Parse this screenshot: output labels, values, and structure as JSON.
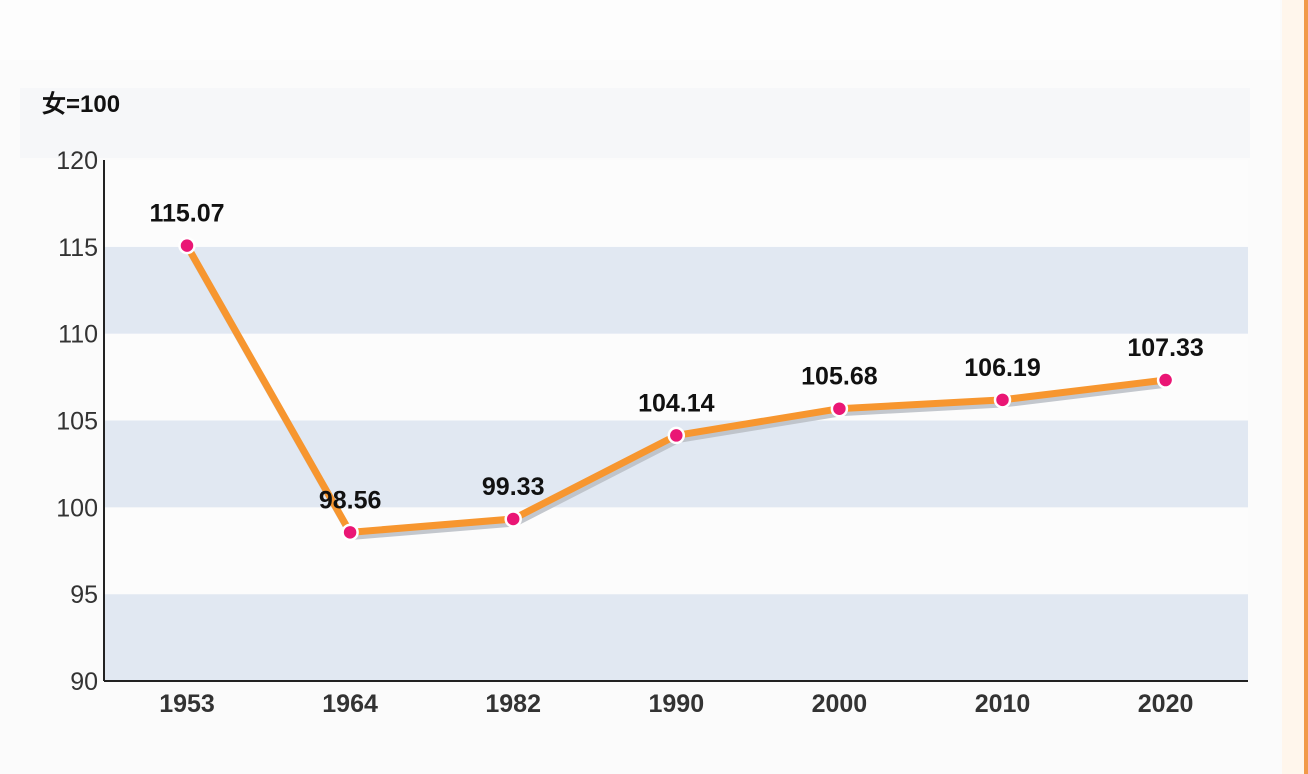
{
  "chart_data": {
    "type": "line",
    "unit_label": "女=100",
    "categories": [
      "1953",
      "1964",
      "1982",
      "1990",
      "2000",
      "2010",
      "2020"
    ],
    "values": [
      115.07,
      98.56,
      99.33,
      104.14,
      105.68,
      106.19,
      107.33
    ],
    "value_labels": [
      "115.07",
      "98.56",
      "99.33",
      "104.14",
      "105.68",
      "106.19",
      "107.33"
    ],
    "ylim": [
      90,
      120
    ],
    "yticks": [
      "120",
      "115",
      "110",
      "105",
      "100",
      "95",
      "90"
    ],
    "banded_background": true,
    "colors": {
      "line": "#f7962f",
      "line_shadow": "#b9bdc4",
      "marker": "#ea1675",
      "marker_stroke": "#ffffff",
      "band": "#e1e8f2",
      "axis": "#222222",
      "accent_border": "#f19a4a"
    }
  }
}
